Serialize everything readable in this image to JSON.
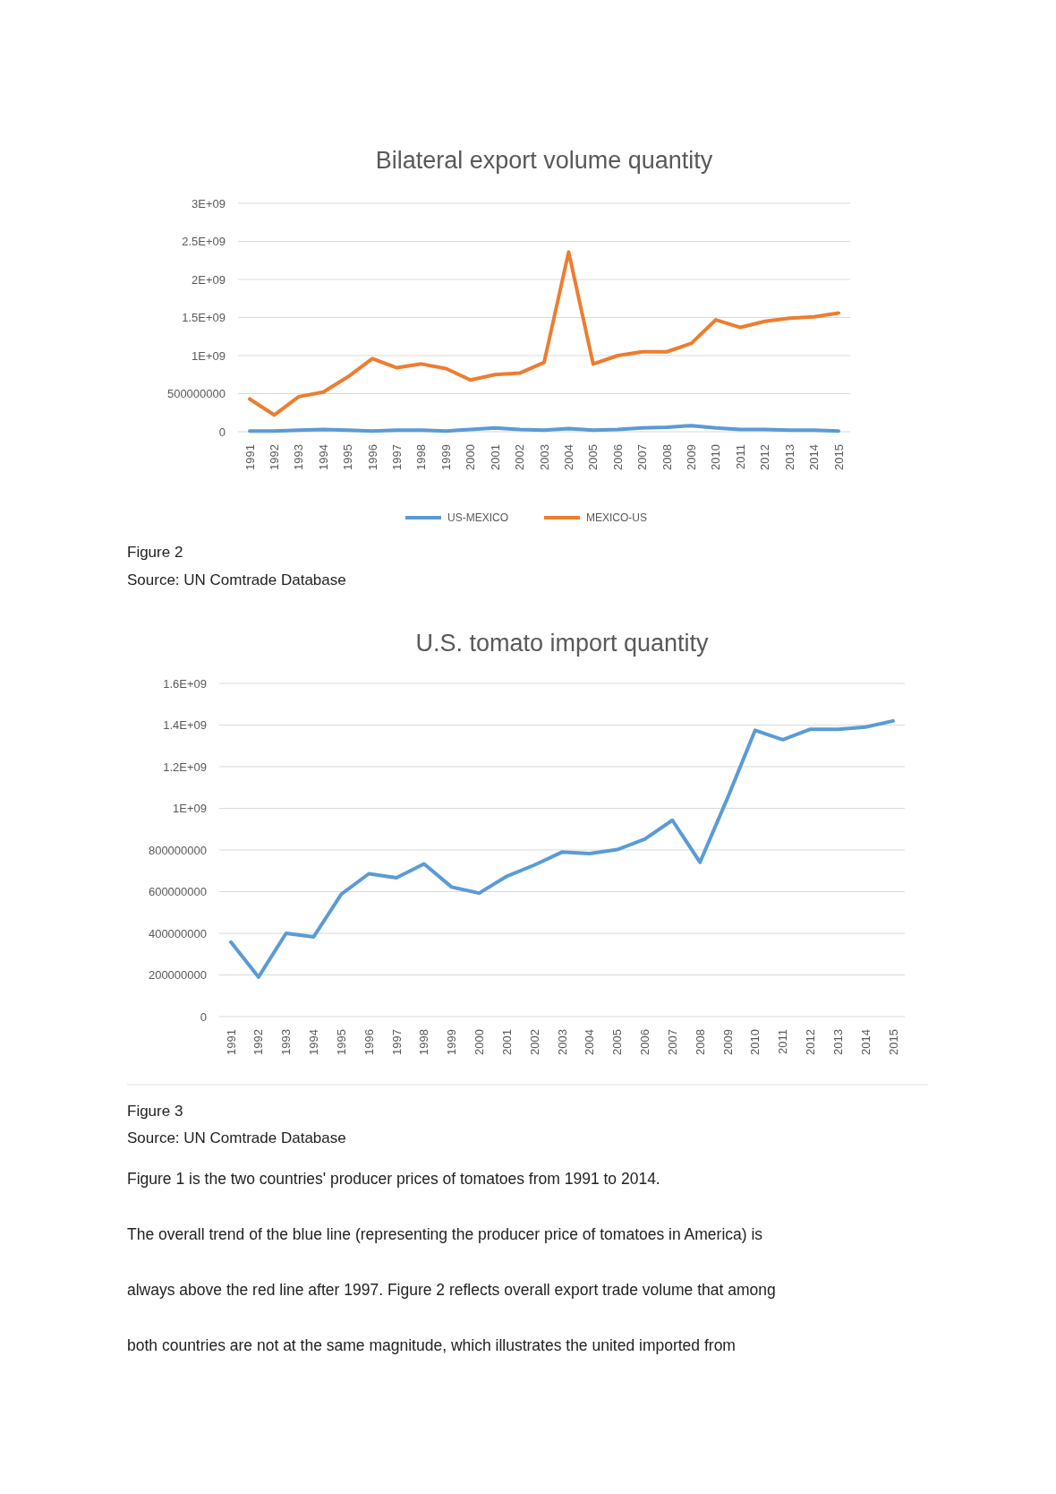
{
  "chart_data": [
    {
      "type": "line",
      "title": "Bilateral export volume quantity",
      "categories": [
        "1991",
        "1992",
        "1993",
        "1994",
        "1995",
        "1996",
        "1997",
        "1998",
        "1999",
        "2000",
        "2001",
        "2002",
        "2003",
        "2004",
        "2005",
        "2006",
        "2007",
        "2008",
        "2009",
        "2010",
        "2011",
        "2012",
        "2013",
        "2014",
        "2015"
      ],
      "series": [
        {
          "name": "US-MEXICO",
          "color": "#5b9bd5",
          "values": [
            10000000,
            10000000,
            20000000,
            30000000,
            20000000,
            10000000,
            20000000,
            20000000,
            10000000,
            30000000,
            50000000,
            30000000,
            20000000,
            40000000,
            20000000,
            30000000,
            50000000,
            60000000,
            80000000,
            50000000,
            30000000,
            30000000,
            20000000,
            20000000,
            10000000
          ]
        },
        {
          "name": "MEXICO-US",
          "color": "#ed7d31",
          "values": [
            430000000,
            220000000,
            460000000,
            520000000,
            720000000,
            960000000,
            840000000,
            890000000,
            830000000,
            680000000,
            750000000,
            770000000,
            910000000,
            2360000000,
            890000000,
            1000000000,
            1050000000,
            1050000000,
            1160000000,
            1470000000,
            1370000000,
            1450000000,
            1490000000,
            1510000000,
            1560000000
          ]
        }
      ],
      "ylim": [
        0,
        3000000000
      ],
      "yticks": [
        0,
        {
          "value": 500000000,
          "label": "500000000"
        },
        {
          "value": 1000000000,
          "label": "1E+09"
        },
        {
          "value": 1500000000,
          "label": "1.5E+09"
        },
        {
          "value": 2000000000,
          "label": "2E+09"
        },
        {
          "value": 2500000000,
          "label": "2.5E+09"
        },
        {
          "value": 3000000000,
          "label": "3E+09"
        }
      ],
      "grid": "y",
      "legend": "bottom",
      "marker": "none",
      "line_style": "solid",
      "annotations": [
        "Figure 2",
        "Source: UN Comtrade Database"
      ]
    },
    {
      "type": "line",
      "title": "U.S. tomato import quantity",
      "categories": [
        "1991",
        "1992",
        "1993",
        "1994",
        "1995",
        "1996",
        "1997",
        "1998",
        "1999",
        "2000",
        "2001",
        "2002",
        "2003",
        "2004",
        "2005",
        "2006",
        "2007",
        "2008",
        "2009",
        "2010",
        "2011",
        "2012",
        "2013",
        "2014",
        "2015"
      ],
      "series": [
        {
          "color": "#5b9bd5",
          "values": [
            358000000,
            190000000,
            400000000,
            383000000,
            588000000,
            686000000,
            667000000,
            733000000,
            622000000,
            593000000,
            674000000,
            728000000,
            790000000,
            783000000,
            802000000,
            852000000,
            943000000,
            741000000,
            1050000000,
            1375000000,
            1330000000,
            1380000000,
            1380000000,
            1390000000,
            1420000000
          ]
        }
      ],
      "ylim": [
        0,
        1600000000
      ],
      "yticks": [
        0,
        200000000,
        400000000,
        600000000,
        800000000,
        {
          "value": 1000000000,
          "label": "1E+09"
        },
        {
          "value": 1200000000,
          "label": "1.2E+09"
        },
        {
          "value": 1400000000,
          "label": "1.4E+09"
        },
        {
          "value": 1600000000,
          "label": "1.6E+09"
        }
      ],
      "grid": "y",
      "marker": "none",
      "line_style": "solid",
      "annotations": [
        "Figure 3",
        "Source: UN Comtrade Database",
        "Figure 1 is the two countries' producer prices of tomatoes from 1991 to 2014.",
        "The overall trend of the blue line (representing the producer price of tomatoes in America) is",
        "always above the red line after 1997. Figure 2 reflects overall export trade volume that among",
        "both countries are not at the same magnitude, which illustrates the united imported from"
      ]
    }
  ]
}
